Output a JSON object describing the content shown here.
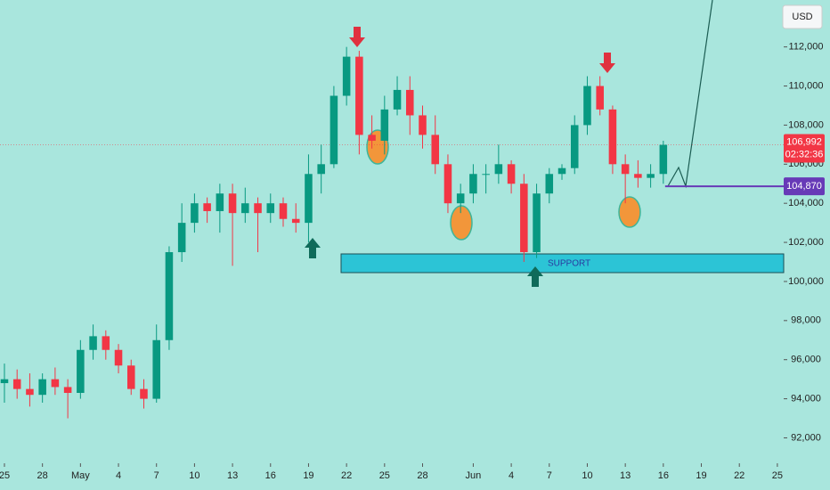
{
  "chart_data": {
    "type": "candlestick",
    "currency": "USD",
    "x": [
      0,
      1,
      2,
      3,
      4,
      5,
      6,
      7,
      8,
      9,
      10,
      11,
      12,
      13,
      14,
      15,
      16,
      17,
      18,
      19,
      20,
      21,
      22,
      23,
      24,
      25,
      26,
      27,
      28,
      29,
      30,
      31,
      32,
      33,
      34,
      35,
      36,
      37,
      38,
      39,
      40,
      41,
      42,
      43,
      44,
      45,
      46,
      47,
      48,
      49,
      50,
      51,
      52
    ],
    "open": [
      94800,
      95000,
      94500,
      94200,
      95000,
      94600,
      94300,
      96500,
      97200,
      96500,
      95700,
      94500,
      94000,
      97000,
      101500,
      103000,
      104000,
      103600,
      104500,
      103500,
      104000,
      103500,
      104000,
      103200,
      103000,
      105500,
      106000,
      109500,
      111500,
      107500,
      107200,
      108800,
      109800,
      108500,
      107500,
      106000,
      104000,
      104500,
      105500,
      105500,
      106000,
      105000,
      101500,
      104500,
      105500,
      105800,
      108000,
      110000,
      108800,
      106000,
      105500,
      105300,
      105500
    ],
    "high": [
      95800,
      95500,
      95300,
      95300,
      95600,
      95000,
      97000,
      97800,
      97500,
      96800,
      96000,
      95000,
      97800,
      101800,
      104000,
      104500,
      104300,
      105000,
      105000,
      104800,
      104300,
      104500,
      104300,
      104000,
      106500,
      107000,
      110000,
      112000,
      111800,
      108500,
      109500,
      110500,
      110500,
      109000,
      108500,
      106500,
      105000,
      106000,
      106000,
      107000,
      106200,
      105500,
      105000,
      105800,
      106000,
      108500,
      110500,
      110500,
      109000,
      106500,
      106200,
      106000,
      107200
    ],
    "low": [
      93800,
      94000,
      93600,
      93800,
      94200,
      93000,
      94000,
      96000,
      96000,
      95300,
      94200,
      93500,
      93800,
      96500,
      101000,
      102500,
      103000,
      102500,
      100800,
      103000,
      101500,
      103000,
      102800,
      102500,
      102000,
      104500,
      105800,
      109000,
      106500,
      106800,
      106500,
      108500,
      107500,
      106800,
      105500,
      103500,
      103500,
      104000,
      104500,
      105000,
      104500,
      101000,
      101200,
      104000,
      105200,
      105500,
      107500,
      108500,
      105500,
      104000,
      104800,
      104800,
      105000
    ],
    "close": [
      95000,
      94500,
      94200,
      95000,
      94600,
      94300,
      96500,
      97200,
      96500,
      95700,
      94500,
      94000,
      97000,
      101500,
      103000,
      104000,
      103600,
      104500,
      103500,
      104000,
      103500,
      104000,
      103200,
      103000,
      105500,
      106000,
      109500,
      111500,
      107500,
      107200,
      108800,
      109800,
      108500,
      107500,
      106000,
      104000,
      104500,
      105500,
      105500,
      106000,
      105000,
      101500,
      104500,
      105500,
      105800,
      108000,
      110000,
      108800,
      106000,
      105500,
      105300,
      105500,
      106992
    ],
    "up_color": "#089981",
    "down_color": "#f23645",
    "xlim": [
      -0.35,
      61.5
    ],
    "xticks": [
      {
        "value": 0,
        "label": "25"
      },
      {
        "value": 3,
        "label": "28"
      },
      {
        "value": 6,
        "label": "May"
      },
      {
        "value": 9,
        "label": "4"
      },
      {
        "value": 12,
        "label": "7"
      },
      {
        "value": 15,
        "label": "10"
      },
      {
        "value": 18,
        "label": "13"
      },
      {
        "value": 21,
        "label": "16"
      },
      {
        "value": 24,
        "label": "19"
      },
      {
        "value": 27,
        "label": "22"
      },
      {
        "value": 30,
        "label": "25"
      },
      {
        "value": 33,
        "label": "28"
      },
      {
        "value": 37,
        "label": "Jun"
      },
      {
        "value": 40,
        "label": "4"
      },
      {
        "value": 43,
        "label": "7"
      },
      {
        "value": 46,
        "label": "10"
      },
      {
        "value": 49,
        "label": "13"
      },
      {
        "value": 52,
        "label": "16"
      },
      {
        "value": 55,
        "label": "19"
      },
      {
        "value": 58,
        "label": "22"
      },
      {
        "value": 61,
        "label": "25"
      }
    ],
    "ylim": [
      90700,
      114400
    ],
    "yticks": [
      {
        "value": 92000,
        "label": "92,000"
      },
      {
        "value": 94000,
        "label": "94,000"
      },
      {
        "value": 96000,
        "label": "96,000"
      },
      {
        "value": 98000,
        "label": "98,000"
      },
      {
        "value": 100000,
        "label": "100,000"
      },
      {
        "value": 102000,
        "label": "102,000"
      },
      {
        "value": 104000,
        "label": "104,000"
      },
      {
        "value": 106000,
        "label": "106,000"
      },
      {
        "value": 108000,
        "label": "108,000"
      },
      {
        "value": 110000,
        "label": "110,000"
      },
      {
        "value": 112000,
        "label": "112,000"
      }
    ],
    "last_price": {
      "value": 106992,
      "value_label": "106,992",
      "countdown": "02:32:36",
      "color": "#f23645"
    },
    "level": {
      "value": 104870,
      "value_label": "104,870",
      "color": "#673ab7"
    },
    "support_label": "SUPPORT"
  }
}
